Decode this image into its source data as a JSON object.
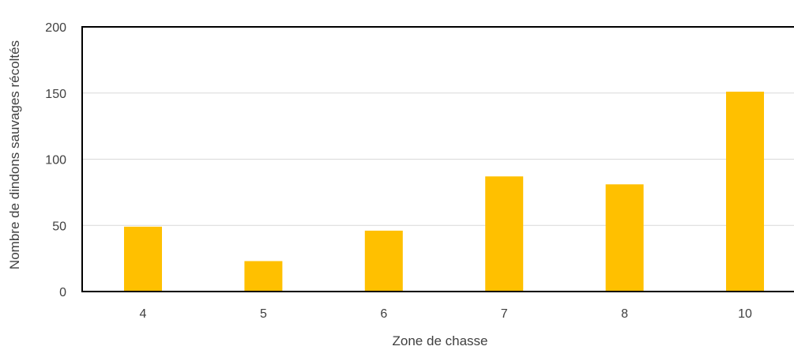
{
  "chart_data": {
    "type": "bar",
    "categories": [
      "4",
      "5",
      "6",
      "7",
      "8",
      "10"
    ],
    "values": [
      49,
      23,
      46,
      87,
      81,
      151
    ],
    "xlabel": "Zone de chasse",
    "ylabel": "Nombre de dindons sauvages récoltés",
    "ylim": [
      0,
      200
    ],
    "yticks": [
      0,
      50,
      100,
      150,
      200
    ],
    "grid": true,
    "bar_color": "#FFC000",
    "grid_color": "#D9D9D9",
    "frame_color": "#000000"
  }
}
